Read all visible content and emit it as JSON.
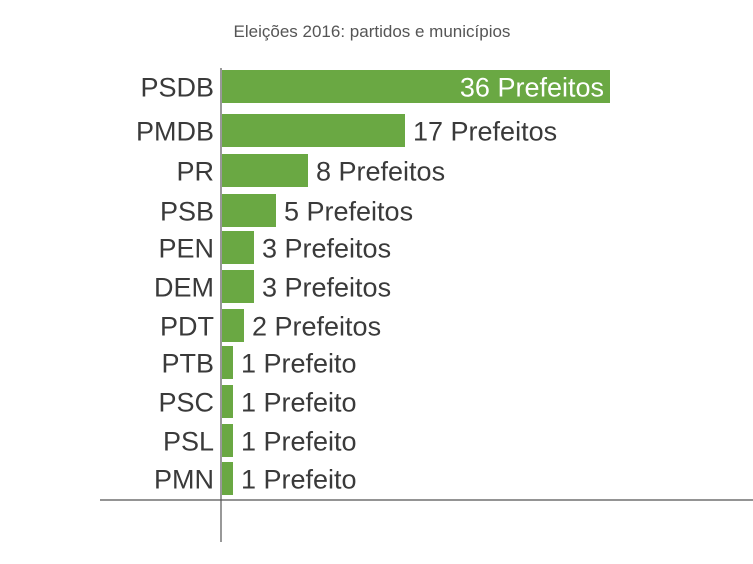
{
  "chart_data": {
    "type": "bar",
    "orientation": "horizontal",
    "title": "Eleições 2016: partidos e municípios",
    "xlabel": "",
    "ylabel": "",
    "xlim": [
      0,
      36
    ],
    "grid": false,
    "bar_color": "#6aa843",
    "inside_label_color": "#ffffff",
    "label_color": "#3a3a3a",
    "categories": [
      "PSDB",
      "PMDB",
      "PR",
      "PSB",
      "PEN",
      "DEM",
      "PDT",
      "PTB",
      "PSC",
      "PSL",
      "PMN"
    ],
    "values": [
      36,
      17,
      8,
      5,
      3,
      3,
      2,
      1,
      1,
      1,
      1
    ],
    "data_labels": [
      "36 Prefeitos",
      "17 Prefeitos",
      "8 Prefeitos",
      "5 Prefeitos",
      "3 Prefeitos",
      "3 Prefeitos",
      "2 Prefeitos",
      "1 Prefeito",
      "1 Prefeito",
      "1 Prefeito",
      "1 Prefeito"
    ]
  }
}
